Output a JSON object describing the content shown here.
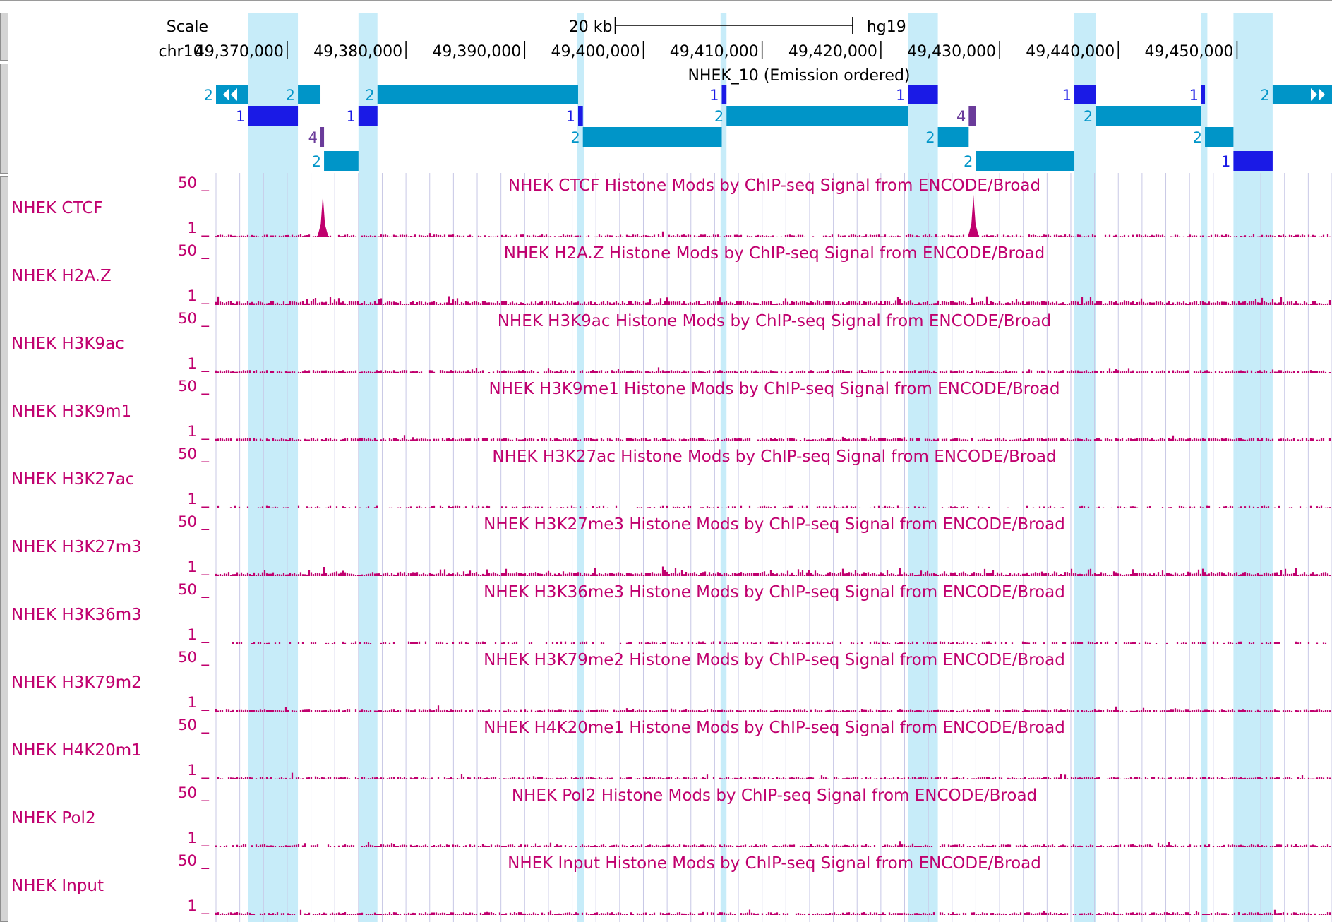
{
  "browser": {
    "scale_label": "Scale",
    "scale_bar_label": "20 kb",
    "assembly": "hg19",
    "chrom_label": "chr10:",
    "ruler": {
      "start": 49364000,
      "end": 49458000,
      "major_ticks": [
        {
          "pos": 49370000,
          "label": "49,370,000"
        },
        {
          "pos": 49380000,
          "label": "49,380,000"
        },
        {
          "pos": 49390000,
          "label": "49,390,000"
        },
        {
          "pos": 49400000,
          "label": "49,400,000"
        },
        {
          "pos": 49410000,
          "label": "49,410,000"
        },
        {
          "pos": 49420000,
          "label": "49,420,000"
        },
        {
          "pos": 49430000,
          "label": "49,430,000"
        },
        {
          "pos": 49440000,
          "label": "49,440,000"
        },
        {
          "pos": 49450000,
          "label": "49,450,000"
        }
      ],
      "scale_bar_kb": 20
    },
    "colors": {
      "state1": "#1a1ae6",
      "state2": "#0095c8",
      "state4": "#6a3b9a",
      "highlight": "#c7ecf9",
      "signal": "#c0006e",
      "label": "#c0006e",
      "gridline": "#c8c8e6"
    },
    "segmentation": {
      "title": "NHEK_10 (Emission ordered)",
      "segments": [
        {
          "state": "2",
          "start": 49364000,
          "end": 49366700,
          "row": 0,
          "arrows": "left"
        },
        {
          "state": "1",
          "start": 49366700,
          "end": 49370900,
          "row": 1
        },
        {
          "state": "2",
          "start": 49370900,
          "end": 49372800,
          "row": 0
        },
        {
          "state": "4",
          "start": 49372800,
          "end": 49373100,
          "row": 2
        },
        {
          "state": "2",
          "start": 49373100,
          "end": 49376000,
          "row": 3
        },
        {
          "state": "1",
          "start": 49376000,
          "end": 49377600,
          "row": 1
        },
        {
          "state": "2",
          "start": 49377600,
          "end": 49394500,
          "row": 0
        },
        {
          "state": "1",
          "start": 49394500,
          "end": 49394900,
          "row": 1
        },
        {
          "state": "2",
          "start": 49394900,
          "end": 49406600,
          "row": 2
        },
        {
          "state": "1",
          "start": 49406600,
          "end": 49407000,
          "row": 0
        },
        {
          "state": "2",
          "start": 49407000,
          "end": 49422300,
          "row": 1
        },
        {
          "state": "1",
          "start": 49422300,
          "end": 49424800,
          "row": 0
        },
        {
          "state": "2",
          "start": 49424800,
          "end": 49427400,
          "row": 2
        },
        {
          "state": "4",
          "start": 49427400,
          "end": 49428000,
          "row": 1
        },
        {
          "state": "2",
          "start": 49428000,
          "end": 49436300,
          "row": 3
        },
        {
          "state": "1",
          "start": 49436300,
          "end": 49438100,
          "row": 0
        },
        {
          "state": "2",
          "start": 49438100,
          "end": 49447000,
          "row": 1
        },
        {
          "state": "1",
          "start": 49447000,
          "end": 49447300,
          "row": 0
        },
        {
          "state": "2",
          "start": 49447300,
          "end": 49449700,
          "row": 2
        },
        {
          "state": "1",
          "start": 49449700,
          "end": 49453000,
          "row": 3
        },
        {
          "state": "2",
          "start": 49453000,
          "end": 49458000,
          "row": 0,
          "arrows": "right"
        }
      ]
    },
    "highlights": [
      {
        "start": 49366700,
        "end": 49370900
      },
      {
        "start": 49376000,
        "end": 49377600
      },
      {
        "start": 49394400,
        "end": 49395000
      },
      {
        "start": 49406500,
        "end": 49407000
      },
      {
        "start": 49422300,
        "end": 49424800
      },
      {
        "start": 49436300,
        "end": 49438100
      },
      {
        "start": 49447000,
        "end": 49447500
      },
      {
        "start": 49449700,
        "end": 49453000
      }
    ],
    "tracks": [
      {
        "label": "NHEK CTCF",
        "title": "NHEK CTCF Histone Mods by ChIP-seq Signal from ENCODE/Broad",
        "max": "50 _",
        "min": "1 _",
        "style": "sparse",
        "peaks": [
          49373000,
          49427800
        ]
      },
      {
        "label": "NHEK H2A.Z",
        "title": "NHEK H2A.Z Histone Mods by ChIP-seq Signal from ENCODE/Broad",
        "max": "50 _",
        "min": "1 _",
        "style": "dense",
        "peaks": []
      },
      {
        "label": "NHEK H3K9ac",
        "title": "NHEK H3K9ac Histone Mods by ChIP-seq Signal from ENCODE/Broad",
        "max": "50 _",
        "min": "1 _",
        "style": "sparse",
        "peaks": []
      },
      {
        "label": "NHEK H3K9m1",
        "title": "NHEK H3K9me1 Histone Mods by ChIP-seq Signal from ENCODE/Broad",
        "max": "50 _",
        "min": "1 _",
        "style": "sparse",
        "peaks": []
      },
      {
        "label": "NHEK H3K27ac",
        "title": "NHEK H3K27ac Histone Mods by ChIP-seq Signal from ENCODE/Broad",
        "max": "50 _",
        "min": "1 _",
        "style": "gappy",
        "peaks": []
      },
      {
        "label": "NHEK H3K27m3",
        "title": "NHEK H3K27me3 Histone Mods by ChIP-seq Signal from ENCODE/Broad",
        "max": "50 _",
        "min": "1 _",
        "style": "dense",
        "peaks": []
      },
      {
        "label": "NHEK H3K36m3",
        "title": "NHEK H3K36me3 Histone Mods by ChIP-seq Signal from ENCODE/Broad",
        "max": "50 _",
        "min": "1 _",
        "style": "gappy",
        "peaks": []
      },
      {
        "label": "NHEK H3K79m2",
        "title": "NHEK H3K79me2 Histone Mods by ChIP-seq Signal from ENCODE/Broad",
        "max": "50 _",
        "min": "1 _",
        "style": "sparse",
        "peaks": []
      },
      {
        "label": "NHEK H4K20m1",
        "title": "NHEK H4K20me1 Histone Mods by ChIP-seq Signal from ENCODE/Broad",
        "max": "50 _",
        "min": "1 _",
        "style": "sparse",
        "peaks": []
      },
      {
        "label": "NHEK Pol2",
        "title": "NHEK Pol2 Histone Mods by ChIP-seq Signal from ENCODE/Broad",
        "max": "50 _",
        "min": "1 _",
        "style": "sparse",
        "peaks": []
      },
      {
        "label": "NHEK Input",
        "title": "NHEK Input Histone Mods by ChIP-seq Signal from ENCODE/Broad",
        "max": "50 _",
        "min": "1 _",
        "style": "sparse",
        "peaks": []
      }
    ]
  }
}
